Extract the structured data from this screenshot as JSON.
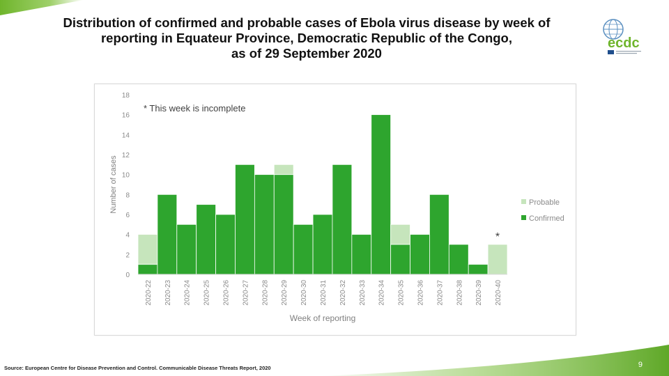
{
  "slide": {
    "title_lines": [
      "Distribution of confirmed and probable cases of Ebola virus disease by week of",
      "reporting in Equateur Province, Democratic Republic of the Congo,",
      "as of 29 September 2020"
    ],
    "source": "Source: European Centre for Disease Prevention and Control. Communicable Disease Threats Report, 2020",
    "page_number": "9",
    "logo_text": "ecdc",
    "colors": {
      "confirmed": "#2ea52e",
      "probable": "#c6e5bc",
      "brand_green": "#6fb52c",
      "brand_blue": "#1f4e8c"
    }
  },
  "chart_data": {
    "type": "bar",
    "stacked": true,
    "categories": [
      "2020-22",
      "2020-23",
      "2020-24",
      "2020-25",
      "2020-26",
      "2020-27",
      "2020-28",
      "2020-29",
      "2020-30",
      "2020-31",
      "2020-32",
      "2020-33",
      "2020-34",
      "2020-35",
      "2020-36",
      "2020-37",
      "2020-38",
      "2020-39",
      "2020-40"
    ],
    "series": [
      {
        "name": "Probable",
        "values": [
          3,
          0,
          0,
          0,
          0,
          0,
          0,
          1,
          0,
          0,
          0,
          0,
          0,
          2,
          0,
          0,
          0,
          0,
          3
        ]
      },
      {
        "name": "Confirmed",
        "values": [
          1,
          8,
          5,
          7,
          6,
          11,
          10,
          10,
          5,
          6,
          11,
          4,
          16,
          3,
          4,
          8,
          3,
          1,
          0
        ]
      }
    ],
    "tick_labels": [
      "2020-22",
      "2020-23",
      "2020-24",
      "2020-25",
      "2020-26",
      "2020-27",
      "2020-28",
      "2020-29",
      "2020-30",
      "2020-31",
      "2020-32",
      "2020-33",
      "2020-34",
      "2020-35",
      "2020-36",
      "2020-37",
      "2020-38",
      "2020-39",
      "2020-40"
    ],
    "y_ticks": [
      "0",
      "2",
      "4",
      "6",
      "8",
      "10",
      "12",
      "14",
      "16",
      "18"
    ],
    "ylim": [
      0,
      18
    ],
    "xlabel": "Week of reporting",
    "ylabel": "Number of cases",
    "annotation": "* This week is incomplete",
    "incomplete_marker": "*",
    "legend": [
      "Probable",
      "Confirmed"
    ],
    "legend_position": "right",
    "grid": false
  }
}
